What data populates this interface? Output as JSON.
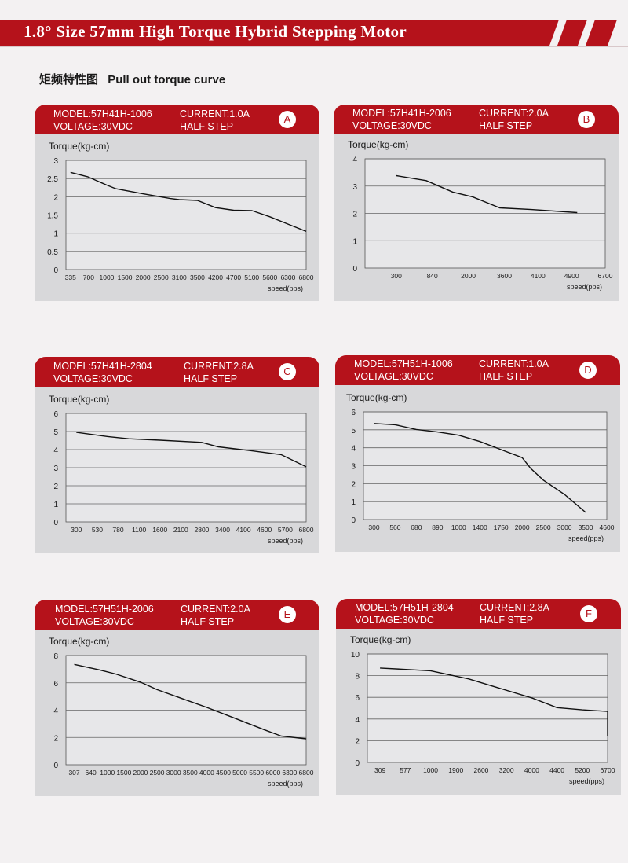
{
  "page": {
    "banner_title": "1.8° Size 57mm High Torque Hybrid Stepping Motor",
    "section_cn": "矩频特性图",
    "section_en": "Pull out torque curve",
    "brand_color": "#b5121b"
  },
  "panels": [
    {
      "letter": "A",
      "model": "MODEL:57H41H-1006",
      "current": "CURRENT:1.0A",
      "voltage": "VOLTAGE:30VDC",
      "step": "HALF STEP",
      "chart_data": {
        "type": "line",
        "ylabel": "Torque(kg-cm)",
        "xlabel": "speed(pps)",
        "yticks": [
          "0",
          "0.5",
          "1",
          "1.5",
          "2",
          "2.5",
          "3"
        ],
        "ylim": [
          0,
          3
        ],
        "xticks": [
          "335",
          "700",
          "1000",
          "1500",
          "2000",
          "2500",
          "3100",
          "3500",
          "4200",
          "4700",
          "5100",
          "5600",
          "6300",
          "6800"
        ],
        "x_start_label": "",
        "grid": "horizontal",
        "values": [
          [
            0,
            2.67
          ],
          [
            0.95,
            2.55
          ],
          [
            2,
            2.32
          ],
          [
            2.5,
            2.22
          ],
          [
            4,
            2.08
          ],
          [
            5.5,
            1.95
          ],
          [
            6,
            1.92
          ],
          [
            7,
            1.9
          ],
          [
            8,
            1.7
          ],
          [
            9,
            1.63
          ],
          [
            10,
            1.62
          ],
          [
            11,
            1.45
          ],
          [
            12,
            1.25
          ],
          [
            13,
            1.05
          ]
        ]
      }
    },
    {
      "letter": "B",
      "model": "MODEL:57H41H-2006",
      "current": "CURRENT:2.0A",
      "voltage": "VOLTAGE:30VDC",
      "step": "HALF STEP",
      "chart_data": {
        "type": "line",
        "ylabel": "Torque(kg-cm)",
        "xlabel": "speed(pps)",
        "yticks": [
          "0",
          "1",
          "2",
          "3",
          "4"
        ],
        "ylim": [
          0,
          4
        ],
        "xticks": [
          "300",
          "840",
          "2000",
          "3600",
          "4100",
          "4900",
          "6700"
        ],
        "grid": "horizontal",
        "values": [
          [
            300,
            3.38
          ],
          [
            750,
            3.2
          ],
          [
            1500,
            2.78
          ],
          [
            2200,
            2.6
          ],
          [
            3400,
            2.2
          ],
          [
            4000,
            2.14
          ],
          [
            5200,
            2.03
          ]
        ]
      }
    },
    {
      "letter": "C",
      "model": "MODEL:57H41H-2804",
      "current": "CURRENT:2.8A",
      "voltage": "VOLTAGE:30VDC",
      "step": "HALF STEP",
      "chart_data": {
        "type": "line",
        "ylabel": "Torque(kg-cm)",
        "xlabel": "speed(pps)",
        "yticks": [
          "0",
          "1",
          "2",
          "3",
          "4",
          "5",
          "6"
        ],
        "ylim": [
          0,
          6
        ],
        "xticks": [
          "300",
          "530",
          "780",
          "1100",
          "1600",
          "2100",
          "2800",
          "3400",
          "4100",
          "4600",
          "5700",
          "6800"
        ],
        "grid": "horizontal",
        "values": [
          [
            0,
            4.95
          ],
          [
            1.5,
            4.72
          ],
          [
            2.5,
            4.6
          ],
          [
            4,
            4.52
          ],
          [
            6,
            4.4
          ],
          [
            6.8,
            4.15
          ],
          [
            8.3,
            3.95
          ],
          [
            9.8,
            3.72
          ],
          [
            11.15,
            3.05
          ]
        ]
      }
    },
    {
      "letter": "D",
      "model": "MODEL:57H51H-1006",
      "current": "CURRENT:1.0A",
      "voltage": "VOLTAGE:30VDC",
      "step": "HALF STEP",
      "chart_data": {
        "type": "line",
        "ylabel": "Torque(kg-cm)",
        "xlabel": "speed(pps)",
        "yticks": [
          "0",
          "1",
          "2",
          "3",
          "4",
          "5",
          "6"
        ],
        "ylim": [
          0,
          6
        ],
        "xticks": [
          "300",
          "560",
          "680",
          "890",
          "1000",
          "1400",
          "1750",
          "2000",
          "2500",
          "3000",
          "3500",
          "4600"
        ],
        "grid": "horizontal",
        "values": [
          [
            300,
            5.35
          ],
          [
            560,
            5.28
          ],
          [
            680,
            5.02
          ],
          [
            890,
            4.88
          ],
          [
            1000,
            4.7
          ],
          [
            1400,
            4.35
          ],
          [
            1750,
            3.9
          ],
          [
            2000,
            3.45
          ],
          [
            2200,
            2.85
          ],
          [
            2500,
            2.2
          ],
          [
            3000,
            1.4
          ],
          [
            3500,
            0.4
          ]
        ]
      }
    },
    {
      "letter": "E",
      "model": "MODEL:57H51H-2006",
      "current": "CURRENT:2.0A",
      "voltage": "VOLTAGE:30VDC",
      "step": "HALF STEP",
      "chart_data": {
        "type": "line",
        "ylabel": "Torque(kg-cm)",
        "xlabel": "speed(pps)",
        "yticks": [
          "0",
          "2",
          "4",
          "6",
          "8"
        ],
        "ylim": [
          0,
          8
        ],
        "xticks": [
          "307",
          "640",
          "1000",
          "1500",
          "2000",
          "2500",
          "3000",
          "3500",
          "4000",
          "4500",
          "5000",
          "5500",
          "6000",
          "6300",
          "6800"
        ],
        "grid": "horizontal",
        "values": [
          [
            0,
            7.35
          ],
          [
            1.5,
            6.95
          ],
          [
            2.5,
            6.65
          ],
          [
            4,
            6.05
          ],
          [
            5,
            5.5
          ],
          [
            6.5,
            4.85
          ],
          [
            8,
            4.2
          ],
          [
            9.5,
            3.5
          ],
          [
            11.5,
            2.55
          ],
          [
            12.5,
            2.1
          ],
          [
            14,
            1.9
          ]
        ]
      }
    },
    {
      "letter": "F",
      "model": "MODEL:57H51H-2804",
      "current": "CURRENT:2.8A",
      "voltage": "VOLTAGE:30VDC",
      "step": "HALF STEP",
      "chart_data": {
        "type": "line",
        "ylabel": "Torque(kg-cm)",
        "xlabel": "speed(pps)",
        "yticks": [
          "0",
          "2",
          "4",
          "6",
          "8",
          "10"
        ],
        "ylim": [
          0,
          10
        ],
        "xticks": [
          "309",
          "577",
          "1000",
          "1900",
          "2600",
          "3200",
          "4000",
          "4400",
          "5200",
          "6700"
        ],
        "grid": "horizontal",
        "values": [
          [
            0,
            8.7
          ],
          [
            2,
            8.45
          ],
          [
            3.5,
            7.7
          ],
          [
            4.5,
            7.0
          ],
          [
            6,
            5.95
          ],
          [
            7,
            5.05
          ],
          [
            8,
            4.85
          ],
          [
            9,
            4.7
          ],
          [
            10.2,
            2.4
          ]
        ]
      }
    }
  ]
}
